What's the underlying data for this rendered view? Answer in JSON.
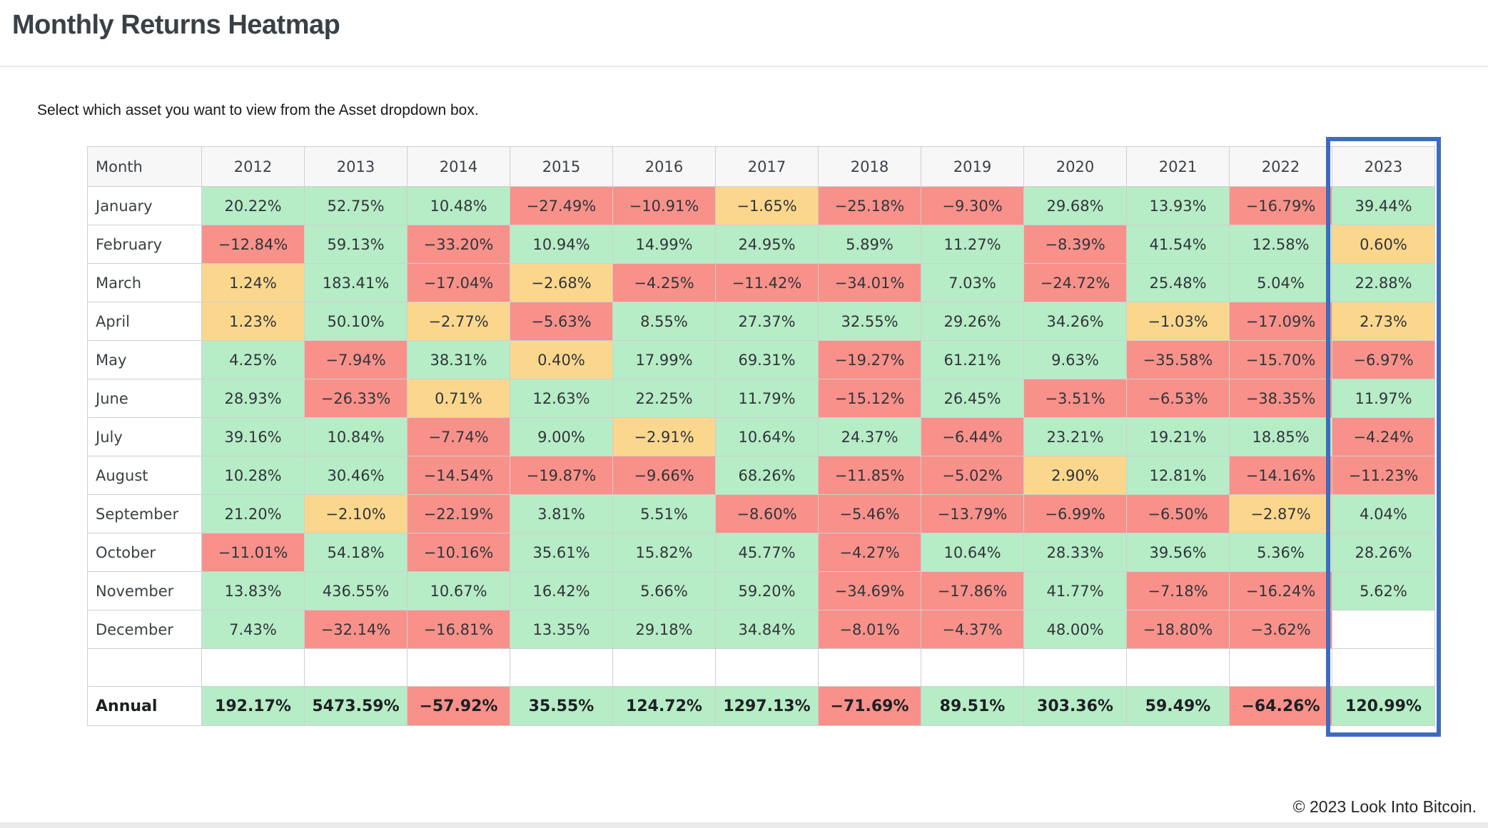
{
  "header": {
    "title": "Monthly Returns Heatmap",
    "instruction": "Select which asset you want to view from the Asset dropdown box."
  },
  "footer": {
    "copyright": "© 2023 Look Into Bitcoin."
  },
  "chart_data": {
    "type": "heatmap",
    "title": "Monthly Returns Heatmap",
    "columns": [
      "Month",
      "2012",
      "2013",
      "2014",
      "2015",
      "2016",
      "2017",
      "2018",
      "2019",
      "2020",
      "2021",
      "2022",
      "2023"
    ],
    "row_labels": [
      "January",
      "February",
      "March",
      "April",
      "May",
      "June",
      "July",
      "August",
      "September",
      "October",
      "November",
      "December"
    ],
    "annual_label": "Annual",
    "values": [
      [
        20.22,
        52.75,
        10.48,
        -27.49,
        -10.91,
        -1.65,
        -25.18,
        -9.3,
        29.68,
        13.93,
        -16.79,
        39.44
      ],
      [
        -12.84,
        59.13,
        -33.2,
        10.94,
        14.99,
        24.95,
        5.89,
        11.27,
        -8.39,
        41.54,
        12.58,
        0.6
      ],
      [
        1.24,
        183.41,
        -17.04,
        -2.68,
        -4.25,
        -11.42,
        -34.01,
        7.03,
        -24.72,
        25.48,
        5.04,
        22.88
      ],
      [
        1.23,
        50.1,
        -2.77,
        -5.63,
        8.55,
        27.37,
        32.55,
        29.26,
        34.26,
        -1.03,
        -17.09,
        2.73
      ],
      [
        4.25,
        -7.94,
        38.31,
        0.4,
        17.99,
        69.31,
        -19.27,
        61.21,
        9.63,
        -35.58,
        -15.7,
        -6.97
      ],
      [
        28.93,
        -26.33,
        0.71,
        12.63,
        22.25,
        11.79,
        -15.12,
        26.45,
        -3.51,
        -6.53,
        -38.35,
        11.97
      ],
      [
        39.16,
        10.84,
        -7.74,
        9.0,
        -2.91,
        10.64,
        24.37,
        -6.44,
        23.21,
        19.21,
        18.85,
        -4.24
      ],
      [
        10.28,
        30.46,
        -14.54,
        -19.87,
        -9.66,
        68.26,
        -11.85,
        -5.02,
        2.9,
        12.81,
        -14.16,
        -11.23
      ],
      [
        21.2,
        -2.1,
        -22.19,
        3.81,
        5.51,
        -8.6,
        -5.46,
        -13.79,
        -6.99,
        -6.5,
        -2.87,
        4.04
      ],
      [
        -11.01,
        54.18,
        -10.16,
        35.61,
        15.82,
        45.77,
        -4.27,
        10.64,
        28.33,
        39.56,
        5.36,
        28.26
      ],
      [
        13.83,
        436.55,
        10.67,
        16.42,
        5.66,
        59.2,
        -34.69,
        -17.86,
        41.77,
        -7.18,
        -16.24,
        5.62
      ],
      [
        7.43,
        -32.14,
        -16.81,
        13.35,
        29.18,
        34.84,
        -8.01,
        -4.37,
        48.0,
        -18.8,
        -3.62,
        null
      ]
    ],
    "annual": [
      192.17,
      5473.59,
      -57.92,
      35.55,
      124.72,
      1297.13,
      -71.69,
      89.51,
      303.36,
      59.49,
      -64.26,
      120.99
    ],
    "value_format": "percent_two_decimals",
    "color_rule": {
      "green_if_above": 3,
      "red_if_below": -3,
      "else": "yellow"
    },
    "colors": {
      "positive": "#b6ecc6",
      "negative": "#f8918a",
      "neutral": "#fbd78d",
      "highlight_border": "#3d6cbd"
    },
    "highlighted_column": "2023",
    "legend_position": "none",
    "grid": true
  }
}
